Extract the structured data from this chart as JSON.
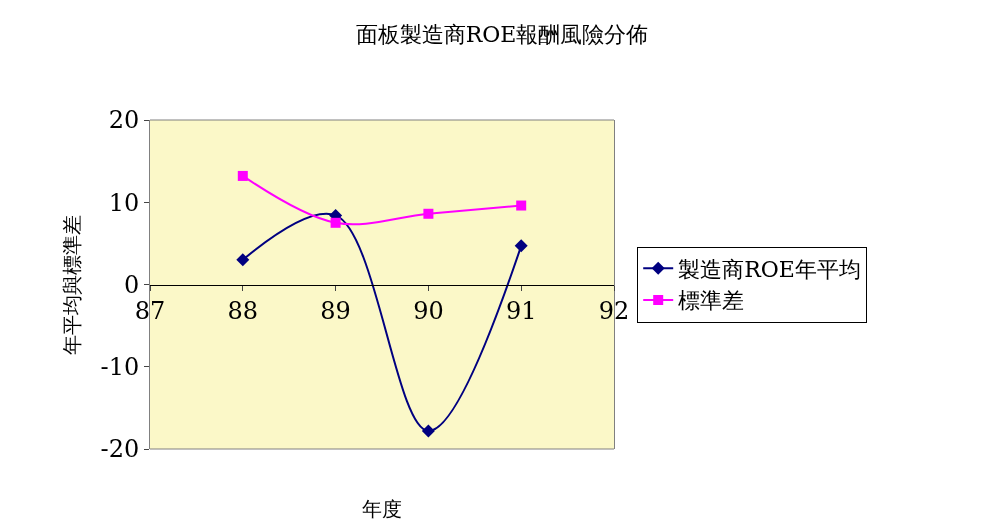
{
  "chart_data": {
    "type": "line",
    "title": "面板製造商ROE報酬風險分佈",
    "xlabel": "年度",
    "ylabel": "年平均與標準差",
    "x": [
      88,
      89,
      90,
      91
    ],
    "xlim": [
      87,
      92
    ],
    "xticks": [
      87,
      88,
      89,
      90,
      91,
      92
    ],
    "ylim": [
      -20,
      20
    ],
    "yticks": [
      -20,
      -10,
      0,
      10,
      20
    ],
    "series": [
      {
        "name": "製造商ROE年平均",
        "color": "#000080",
        "marker": "diamond",
        "values": [
          3.0,
          8.4,
          -17.8,
          4.7
        ]
      },
      {
        "name": "標準差",
        "color": "#ff00ff",
        "marker": "square",
        "values": [
          13.2,
          7.5,
          8.6,
          9.6
        ]
      }
    ],
    "grid": false,
    "legend": "right",
    "line_style": "solid"
  }
}
